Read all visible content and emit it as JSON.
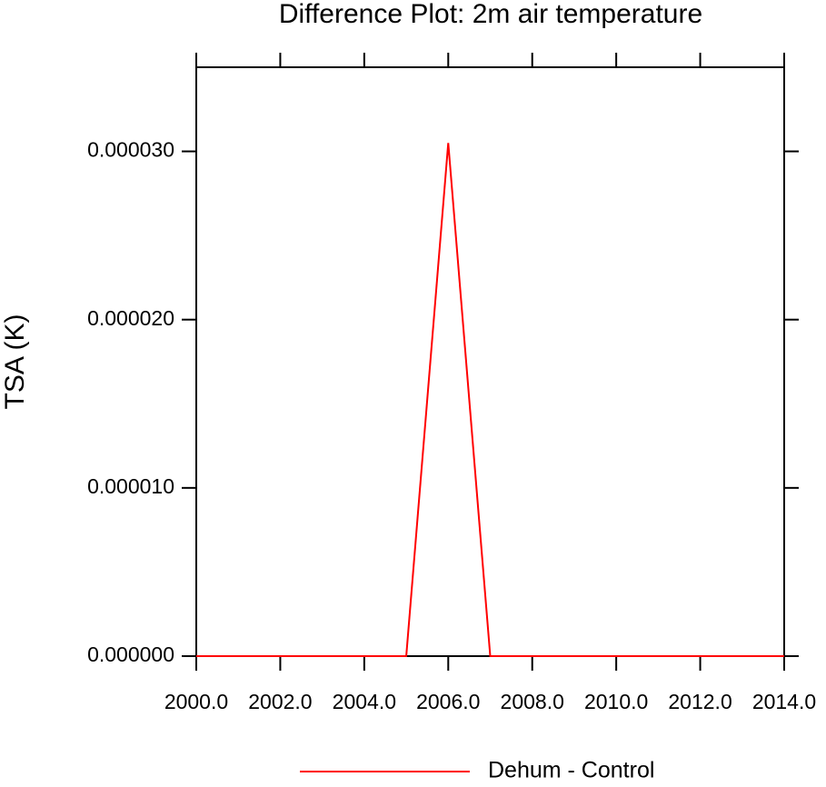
{
  "chart_data": {
    "type": "line",
    "title": "Difference Plot: 2m air temperature",
    "y_label": "TSA  (K)",
    "x": [
      2000,
      2001,
      2002,
      2003,
      2004,
      2005,
      2006,
      2007,
      2008,
      2009,
      2010,
      2011,
      2012,
      2013,
      2014
    ],
    "series": [
      {
        "name": "Dehum - Control",
        "color": "#ff0000",
        "values": [
          0,
          0,
          0,
          0,
          0,
          0,
          3.05e-05,
          0,
          0,
          0,
          0,
          0,
          0,
          0,
          0
        ]
      }
    ],
    "xlim": [
      2000,
      2014
    ],
    "xticks": [
      {
        "value": 2000,
        "label": "2000.0"
      },
      {
        "value": 2002,
        "label": "2002.0"
      },
      {
        "value": 2004,
        "label": "2004.0"
      },
      {
        "value": 2006,
        "label": "2006.0"
      },
      {
        "value": 2008,
        "label": "2008.0"
      },
      {
        "value": 2010,
        "label": "2010.0"
      },
      {
        "value": 2012,
        "label": "2012.0"
      },
      {
        "value": 2014,
        "label": "2014.0"
      }
    ],
    "ylim": [
      0,
      3.5e-05
    ],
    "yticks": [
      {
        "value": 0,
        "label": "0.000000"
      },
      {
        "value": 1e-05,
        "label": "0.000010"
      },
      {
        "value": 2e-05,
        "label": "0.000020"
      },
      {
        "value": 3e-05,
        "label": "0.000030"
      }
    ]
  }
}
